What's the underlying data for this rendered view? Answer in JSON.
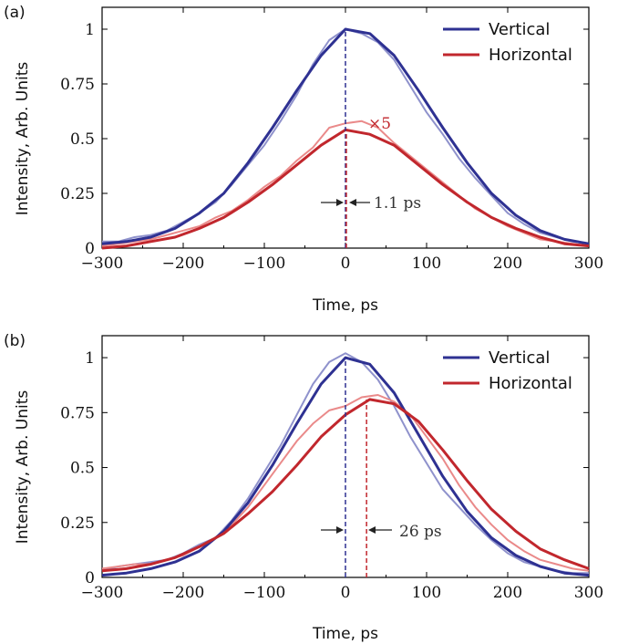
{
  "colors": {
    "vertical": "#2e3192",
    "horizontal": "#c1272d",
    "vertical_raw": "#8f92cc",
    "horizontal_raw": "#ea8a8a"
  },
  "chart_data": [
    {
      "type": "line",
      "panel_label": "(a)",
      "xlabel": "Time, ps",
      "ylabel": "Intensity, Arb. Units",
      "xlim": [
        -300,
        300
      ],
      "ylim": [
        0,
        1.1
      ],
      "xticks": [
        -300,
        -200,
        -100,
        0,
        100,
        200,
        300
      ],
      "xtick_labels": [
        "−300",
        "−200",
        "−100",
        "0",
        "100",
        "200",
        "300"
      ],
      "yticks": [
        0,
        0.25,
        0.5,
        0.75,
        1
      ],
      "ytick_labels": [
        "0",
        "0.25",
        "0.5",
        "0.75",
        "1"
      ],
      "legend": {
        "position": "top-right",
        "entries": [
          "Vertical",
          "Horizontal"
        ]
      },
      "series": [
        {
          "name": "Vertical",
          "role": "fit",
          "x": [
            -300,
            -270,
            -240,
            -210,
            -180,
            -150,
            -120,
            -90,
            -60,
            -30,
            0,
            30,
            60,
            90,
            120,
            150,
            180,
            210,
            240,
            270,
            300
          ],
          "y": [
            0.02,
            0.03,
            0.05,
            0.09,
            0.16,
            0.25,
            0.39,
            0.55,
            0.72,
            0.88,
            1.0,
            0.98,
            0.88,
            0.72,
            0.55,
            0.39,
            0.25,
            0.15,
            0.08,
            0.04,
            0.02
          ]
        },
        {
          "name": "Horizontal",
          "role": "fit",
          "x": [
            -300,
            -270,
            -240,
            -210,
            -180,
            -150,
            -120,
            -90,
            -60,
            -30,
            0,
            30,
            60,
            90,
            120,
            150,
            180,
            210,
            240,
            270,
            300
          ],
          "y": [
            0.0,
            0.01,
            0.03,
            0.05,
            0.09,
            0.14,
            0.21,
            0.29,
            0.38,
            0.47,
            0.54,
            0.52,
            0.47,
            0.38,
            0.29,
            0.21,
            0.14,
            0.09,
            0.05,
            0.02,
            0.01
          ]
        },
        {
          "name": "Vertical",
          "role": "measured",
          "x": [
            -300,
            -280,
            -260,
            -240,
            -220,
            -200,
            -180,
            -160,
            -140,
            -120,
            -100,
            -80,
            -60,
            -40,
            -20,
            0,
            20,
            40,
            60,
            80,
            100,
            120,
            140,
            160,
            180,
            200,
            220,
            240,
            260,
            280,
            300
          ],
          "y": [
            0.03,
            0.03,
            0.05,
            0.06,
            0.08,
            0.12,
            0.16,
            0.21,
            0.29,
            0.38,
            0.47,
            0.58,
            0.7,
            0.84,
            0.95,
            1.0,
            0.98,
            0.94,
            0.86,
            0.74,
            0.62,
            0.52,
            0.41,
            0.32,
            0.24,
            0.16,
            0.11,
            0.07,
            0.05,
            0.03,
            0.02
          ]
        },
        {
          "name": "Horizontal",
          "role": "measured",
          "x": [
            -300,
            -280,
            -260,
            -240,
            -220,
            -200,
            -180,
            -160,
            -140,
            -120,
            -100,
            -80,
            -60,
            -40,
            -20,
            0,
            20,
            40,
            60,
            80,
            100,
            120,
            140,
            160,
            180,
            200,
            220,
            240,
            260,
            280,
            300
          ],
          "y": [
            0.01,
            0.02,
            0.03,
            0.04,
            0.06,
            0.08,
            0.1,
            0.14,
            0.17,
            0.22,
            0.28,
            0.33,
            0.4,
            0.46,
            0.55,
            0.57,
            0.58,
            0.55,
            0.48,
            0.42,
            0.36,
            0.3,
            0.24,
            0.18,
            0.14,
            0.1,
            0.07,
            0.04,
            0.03,
            0.02,
            0.01
          ]
        }
      ],
      "peak_markers": [
        {
          "series": "Vertical",
          "x": 0
        },
        {
          "series": "Horizontal",
          "x": 1.1
        }
      ],
      "annotations": [
        {
          "text": "×5",
          "x": 25,
          "y": 0.57
        },
        {
          "text": "1.1 ps",
          "x": 0,
          "y": 0.22
        }
      ]
    },
    {
      "type": "line",
      "panel_label": "(b)",
      "xlabel": "Time, ps",
      "ylabel": "Intensity, Arb. Units",
      "xlim": [
        -300,
        300
      ],
      "ylim": [
        0,
        1.1
      ],
      "xticks": [
        -300,
        -200,
        -100,
        0,
        100,
        200,
        300
      ],
      "xtick_labels": [
        "−300",
        "−200",
        "−100",
        "0",
        "100",
        "200",
        "300"
      ],
      "yticks": [
        0,
        0.25,
        0.5,
        0.75,
        1
      ],
      "ytick_labels": [
        "0",
        "0.25",
        "0.5",
        "0.75",
        "1"
      ],
      "legend": {
        "position": "top-right",
        "entries": [
          "Vertical",
          "Horizontal"
        ]
      },
      "series": [
        {
          "name": "Vertical",
          "role": "fit",
          "x": [
            -300,
            -270,
            -240,
            -210,
            -180,
            -150,
            -120,
            -90,
            -60,
            -30,
            0,
            30,
            60,
            90,
            120,
            150,
            180,
            210,
            240,
            270,
            300
          ],
          "y": [
            0.01,
            0.02,
            0.04,
            0.07,
            0.12,
            0.21,
            0.34,
            0.51,
            0.7,
            0.88,
            1.0,
            0.97,
            0.84,
            0.65,
            0.46,
            0.3,
            0.18,
            0.1,
            0.05,
            0.02,
            0.01
          ]
        },
        {
          "name": "Horizontal",
          "role": "fit",
          "x": [
            -300,
            -270,
            -240,
            -210,
            -180,
            -150,
            -120,
            -90,
            -60,
            -30,
            0,
            30,
            60,
            90,
            120,
            150,
            180,
            210,
            240,
            270,
            300
          ],
          "y": [
            0.03,
            0.04,
            0.06,
            0.09,
            0.14,
            0.2,
            0.29,
            0.39,
            0.51,
            0.64,
            0.74,
            0.81,
            0.79,
            0.71,
            0.58,
            0.44,
            0.31,
            0.21,
            0.13,
            0.08,
            0.04
          ]
        },
        {
          "name": "Vertical",
          "role": "measured",
          "x": [
            -300,
            -280,
            -260,
            -240,
            -220,
            -200,
            -180,
            -160,
            -140,
            -120,
            -100,
            -80,
            -60,
            -40,
            -20,
            0,
            20,
            40,
            60,
            80,
            100,
            120,
            140,
            160,
            180,
            200,
            220,
            240,
            260,
            280,
            300
          ],
          "y": [
            0.03,
            0.05,
            0.06,
            0.07,
            0.08,
            0.11,
            0.15,
            0.18,
            0.26,
            0.36,
            0.48,
            0.6,
            0.74,
            0.88,
            0.98,
            1.02,
            0.98,
            0.9,
            0.78,
            0.64,
            0.52,
            0.4,
            0.32,
            0.24,
            0.17,
            0.11,
            0.07,
            0.05,
            0.03,
            0.02,
            0.02
          ]
        },
        {
          "name": "Horizontal",
          "role": "measured",
          "x": [
            -300,
            -280,
            -260,
            -240,
            -220,
            -200,
            -180,
            -160,
            -140,
            -120,
            -100,
            -80,
            -60,
            -40,
            -20,
            0,
            20,
            40,
            60,
            80,
            100,
            120,
            140,
            160,
            180,
            200,
            220,
            240,
            260,
            280,
            300
          ],
          "y": [
            0.04,
            0.05,
            0.06,
            0.06,
            0.08,
            0.1,
            0.14,
            0.18,
            0.24,
            0.32,
            0.42,
            0.52,
            0.62,
            0.7,
            0.76,
            0.78,
            0.82,
            0.83,
            0.8,
            0.74,
            0.64,
            0.54,
            0.42,
            0.32,
            0.24,
            0.17,
            0.12,
            0.08,
            0.06,
            0.04,
            0.03
          ]
        }
      ],
      "peak_markers": [
        {
          "series": "Vertical",
          "x": 0
        },
        {
          "series": "Horizontal",
          "x": 26
        }
      ],
      "annotations": [
        {
          "text": "26 ps",
          "x": 26,
          "y": 0.22
        }
      ]
    }
  ]
}
